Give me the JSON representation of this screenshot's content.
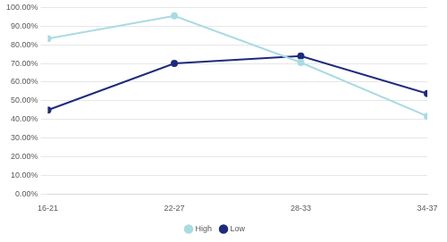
{
  "chart_data": {
    "type": "line",
    "categories": [
      "16-21",
      "22-27",
      "28-33",
      "34-37"
    ],
    "series": [
      {
        "name": "High",
        "color": "#a9dbe3",
        "marker": "circle",
        "values": [
          83.3,
          95.5,
          70.5,
          41.7
        ]
      },
      {
        "name": "Low",
        "color": "#1f2b7b",
        "marker": "circle",
        "values": [
          45.0,
          70.0,
          74.0,
          53.8
        ]
      }
    ],
    "ylim": [
      0,
      100
    ],
    "yticks": [
      {
        "value": 0,
        "label": "0.00%"
      },
      {
        "value": 10,
        "label": "10.00%"
      },
      {
        "value": 20,
        "label": "20.00%"
      },
      {
        "value": 30,
        "label": "30.00%"
      },
      {
        "value": 40,
        "label": "40.00%"
      },
      {
        "value": 50,
        "label": "50.00%"
      },
      {
        "value": 60,
        "label": "60.00%"
      },
      {
        "value": 70,
        "label": "70.00%"
      },
      {
        "value": 80,
        "label": "80.00%"
      },
      {
        "value": 90,
        "label": "90.00%"
      },
      {
        "value": 100,
        "label": "100.00%"
      }
    ],
    "grid": true,
    "legend": "bottom"
  }
}
